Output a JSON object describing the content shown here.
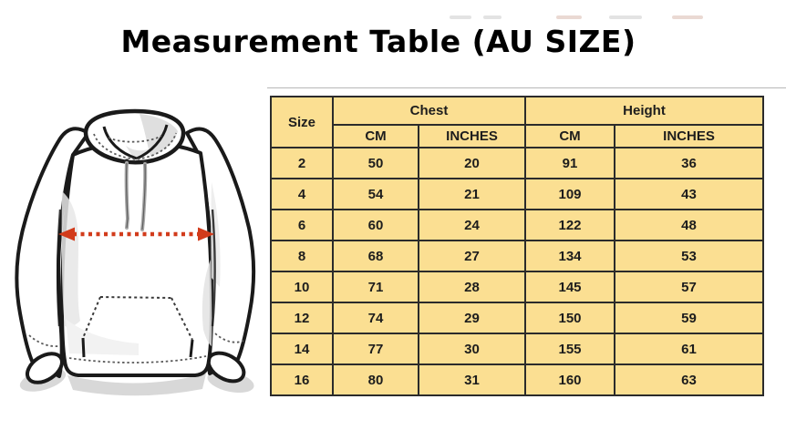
{
  "title": "Measurement Table (AU SIZE)",
  "chart_data": {
    "type": "table",
    "title": "Measurement Table (AU SIZE)",
    "column_groups": [
      {
        "label": "Size",
        "span": 1
      },
      {
        "label": "Chest",
        "span": 2
      },
      {
        "label": "Height",
        "span": 2
      }
    ],
    "unit_headers": [
      "CM",
      "INCHES",
      "CM",
      "INCHES"
    ],
    "rows": [
      [
        2,
        50,
        20,
        91,
        36
      ],
      [
        4,
        54,
        21,
        109,
        43
      ],
      [
        6,
        60,
        24,
        122,
        48
      ],
      [
        8,
        68,
        27,
        134,
        53
      ],
      [
        10,
        71,
        28,
        145,
        57
      ],
      [
        12,
        74,
        29,
        150,
        59
      ],
      [
        14,
        77,
        30,
        155,
        61
      ],
      [
        16,
        80,
        31,
        160,
        63
      ]
    ],
    "layout": {
      "grid": true,
      "header_fill": "#fbdf92",
      "cell_fill": "#fbdf92"
    }
  },
  "colors": {
    "cell_background": "#fbdf92",
    "table_border": "#2b2b2b",
    "chest_arrow_red": "#d23b1b",
    "outline_black": "#1a1a1a"
  },
  "icons": {
    "chest_arrow": "double-headed-dashed-arrow-icon",
    "hoodie": "hoodie-front-outline-illustration"
  }
}
